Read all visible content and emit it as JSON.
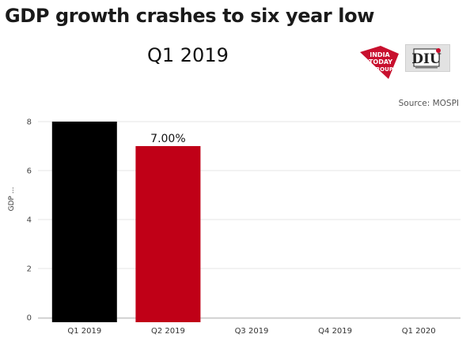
{
  "title": "GDP growth crashes to six year low",
  "subtitle": "Q1 2019",
  "source": "Source: MOSPI",
  "logos": {
    "india_today_group": {
      "line1": "INDIA",
      "line2": "TODAY",
      "line3": "GROUP",
      "color": "#c8102e"
    },
    "diu": {
      "text": "DIU",
      "color": "#c8102e"
    }
  },
  "colors": {
    "highlight": "#c00017",
    "base": "#000000",
    "grid": "#e6e6e6"
  },
  "chart_data": {
    "type": "bar",
    "categories": [
      "Q1 2019",
      "Q2 2019",
      "Q3 2019",
      "Q4 2019",
      "Q1 2020"
    ],
    "values": [
      8.0,
      7.0,
      null,
      null,
      null
    ],
    "bar_colors": [
      "#000000",
      "#c00017",
      null,
      null,
      null
    ],
    "data_labels": [
      "",
      "7.00%",
      "",
      "",
      ""
    ],
    "ylabel": "GDP ...",
    "ylim": [
      0,
      8
    ],
    "yticks": [
      0,
      2,
      4,
      6,
      8
    ],
    "grid": true,
    "legend": "none"
  }
}
